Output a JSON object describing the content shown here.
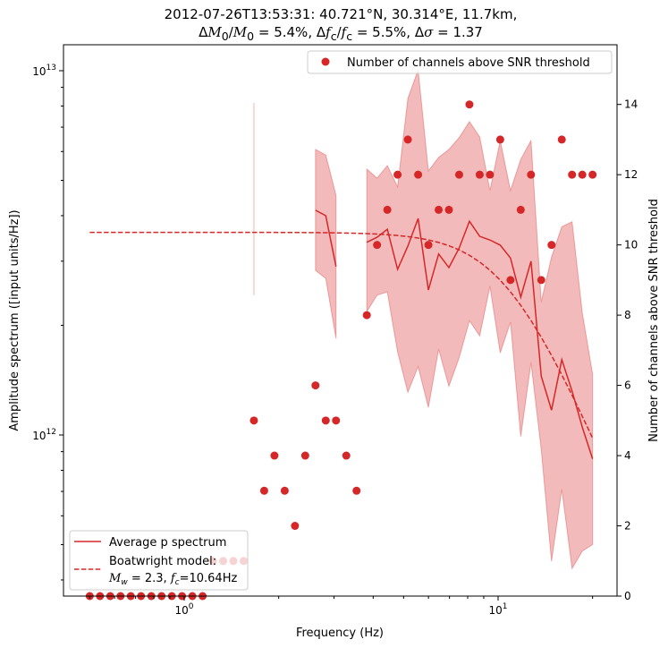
{
  "title": {
    "line1": "2012-07-26T13:53:31: 40.721°N, 30.314°E, 11.7km,",
    "dM0": "5.4%",
    "dfc": "5.5%",
    "dsigma": "1.37"
  },
  "colors": {
    "accent": "#d62728",
    "fill": "#d62728"
  },
  "chart_data": {
    "type": "line",
    "xlabel": "Frequency (Hz)",
    "ylabel": "Amplitude spectrum ([input units/Hz])",
    "y2label": "Number of channels above SNR threshold",
    "xscale": "log",
    "yscale": "log",
    "xlim": [
      0.41,
      23.9
    ],
    "ylim": [
      360000000000.0,
      11800000000000.0
    ],
    "y2lim": [
      0,
      15.7
    ],
    "xticks": [
      {
        "v": 1,
        "base": "10",
        "exp": "0"
      },
      {
        "v": 10,
        "base": "10",
        "exp": "1"
      }
    ],
    "yticks": [
      {
        "v": 1000000000000.0,
        "base": "10",
        "exp": "12"
      },
      {
        "v": 10000000000000.0,
        "base": "10",
        "exp": "13"
      }
    ],
    "y2ticks": [
      "0",
      "2",
      "4",
      "6",
      "8",
      "10",
      "12",
      "14"
    ],
    "frequency_range": [
      0.5,
      20
    ],
    "n_frequencies": 50,
    "snr_channels": [
      0,
      0,
      0,
      0,
      0,
      0,
      0,
      0,
      0,
      0,
      0,
      0,
      1,
      1,
      1,
      1,
      5,
      3,
      4,
      3,
      2,
      4,
      6,
      5,
      5,
      4,
      3,
      8,
      10,
      11,
      12,
      13,
      12,
      10,
      11,
      11,
      12,
      14,
      12,
      12,
      13,
      9,
      11,
      12,
      9,
      10,
      13,
      12,
      12,
      12
    ],
    "mean_spectrum": [
      {
        "start": 16,
        "values": [
          4400000000000.0
        ],
        "lower": [
          2420000000000.0
        ],
        "upper": [
          8160000000000.0
        ]
      },
      {
        "start": 22,
        "values": [
          4140000000000.0,
          4000000000000.0,
          2900000000000.0
        ],
        "lower": [
          2830000000000.0,
          2690000000000.0,
          1840000000000.0
        ],
        "upper": [
          6080000000000.0,
          5870000000000.0,
          4550000000000.0
        ]
      },
      {
        "start": 27,
        "values": [
          3380000000000.0,
          3490000000000.0,
          3670000000000.0,
          2850000000000.0,
          3300000000000.0,
          3930000000000.0,
          2500000000000.0,
          3140000000000.0,
          2880000000000.0,
          3260000000000.0,
          3860000000000.0,
          3510000000000.0,
          3430000000000.0,
          3320000000000.0,
          3060000000000.0,
          2390000000000.0,
          3000000000000.0,
          1450000000000.0,
          1170000000000.0,
          1610000000000.0,
          1320000000000.0,
          1050000000000.0,
          860000000000.0
        ],
        "lower": [
          2180000000000.0,
          2420000000000.0,
          2470000000000.0,
          1690000000000.0,
          1310000000000.0,
          1540000000000.0,
          1190000000000.0,
          1720000000000.0,
          1360000000000.0,
          1630000000000.0,
          2060000000000.0,
          1870000000000.0,
          2560000000000.0,
          1680000000000.0,
          2040000000000.0,
          990000000000.0,
          1580000000000.0,
          910000000000.0,
          450000000000.0,
          710000000000.0,
          430000000000.0,
          480000000000.0,
          500000000000.0
        ],
        "upper": [
          5370000000000.0,
          5070000000000.0,
          5490000000000.0,
          4800000000000.0,
          8390000000000.0,
          10050000000000.0,
          5310000000000.0,
          5780000000000.0,
          6080000000000.0,
          6550000000000.0,
          7250000000000.0,
          6580000000000.0,
          4690000000000.0,
          6430000000000.0,
          4690000000000.0,
          5710000000000.0,
          6430000000000.0,
          2320000000000.0,
          3080000000000.0,
          3730000000000.0,
          3850000000000.0,
          2160000000000.0,
          1470000000000.0
        ]
      }
    ],
    "model": {
      "omega0": 3600000000000.0,
      "fc": 10.64,
      "mw": "2.3",
      "fc_label": "10.64Hz"
    },
    "legend_lower_left": {
      "mean": "Average p spectrum",
      "model_line1": "Boatwright model:",
      "mw_value": "2.3",
      "fc_value": "10.64Hz"
    },
    "legend_upper_right": {
      "snr": "Number of channels above SNR threshold"
    }
  }
}
